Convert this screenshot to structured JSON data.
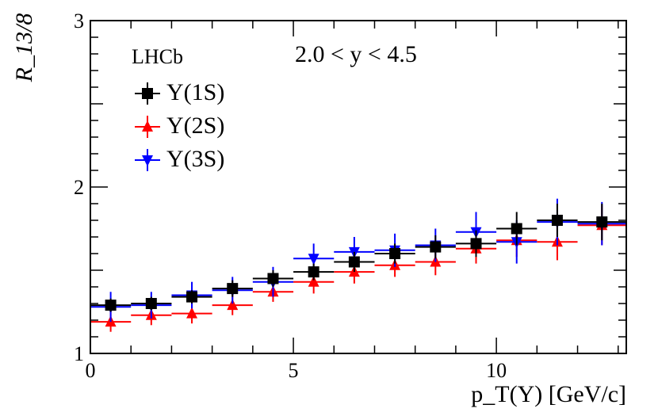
{
  "chart_data": {
    "type": "scatter",
    "title": "",
    "experiment_label": "LHCb",
    "range_label": "2.0 < y < 4.5",
    "xlabel": "p_T(Υ) [GeV/c]",
    "ylabel": "R_13/8",
    "xlim": [
      0,
      13.2
    ],
    "ylim": [
      1,
      3
    ],
    "x_ticks": [
      0,
      5,
      10
    ],
    "y_ticks": [
      1,
      2,
      3
    ],
    "bin_edges": [
      0,
      1,
      2,
      3,
      4,
      5,
      6,
      7,
      8,
      9,
      10,
      11,
      12,
      13.2
    ],
    "series": [
      {
        "name": "Υ(1S)",
        "color": "#000000",
        "marker": "square",
        "x": [
          0.5,
          1.5,
          2.5,
          3.5,
          4.5,
          5.5,
          6.5,
          7.5,
          8.5,
          9.5,
          10.5,
          11.5,
          12.6
        ],
        "values": [
          1.29,
          1.3,
          1.34,
          1.39,
          1.45,
          1.49,
          1.55,
          1.6,
          1.64,
          1.66,
          1.75,
          1.8,
          1.79
        ],
        "yerr": [
          0.04,
          0.04,
          0.04,
          0.05,
          0.05,
          0.05,
          0.06,
          0.06,
          0.07,
          0.08,
          0.1,
          0.1,
          0.11
        ]
      },
      {
        "name": "Υ(2S)",
        "color": "#ff0000",
        "marker": "triangle-up",
        "x": [
          0.5,
          1.5,
          2.5,
          3.5,
          4.5,
          5.5,
          6.5,
          7.5,
          8.5,
          9.5,
          10.5,
          11.5,
          12.6
        ],
        "values": [
          1.19,
          1.23,
          1.24,
          1.29,
          1.37,
          1.43,
          1.49,
          1.53,
          1.55,
          1.63,
          1.68,
          1.67,
          1.77
        ],
        "yerr": [
          0.06,
          0.06,
          0.06,
          0.06,
          0.06,
          0.07,
          0.07,
          0.07,
          0.08,
          0.09,
          0.1,
          0.11,
          0.12
        ]
      },
      {
        "name": "Υ(3S)",
        "color": "#0000ff",
        "marker": "triangle-down",
        "x": [
          0.5,
          1.5,
          2.5,
          3.5,
          4.5,
          5.5,
          6.5,
          7.5,
          8.5,
          9.5,
          10.5,
          11.5,
          12.6
        ],
        "values": [
          1.28,
          1.29,
          1.35,
          1.38,
          1.43,
          1.57,
          1.61,
          1.62,
          1.65,
          1.73,
          1.67,
          1.79,
          1.78
        ],
        "yerr": [
          0.09,
          0.08,
          0.08,
          0.08,
          0.09,
          0.09,
          0.09,
          0.1,
          0.1,
          0.12,
          0.13,
          0.14,
          0.13
        ]
      }
    ]
  }
}
